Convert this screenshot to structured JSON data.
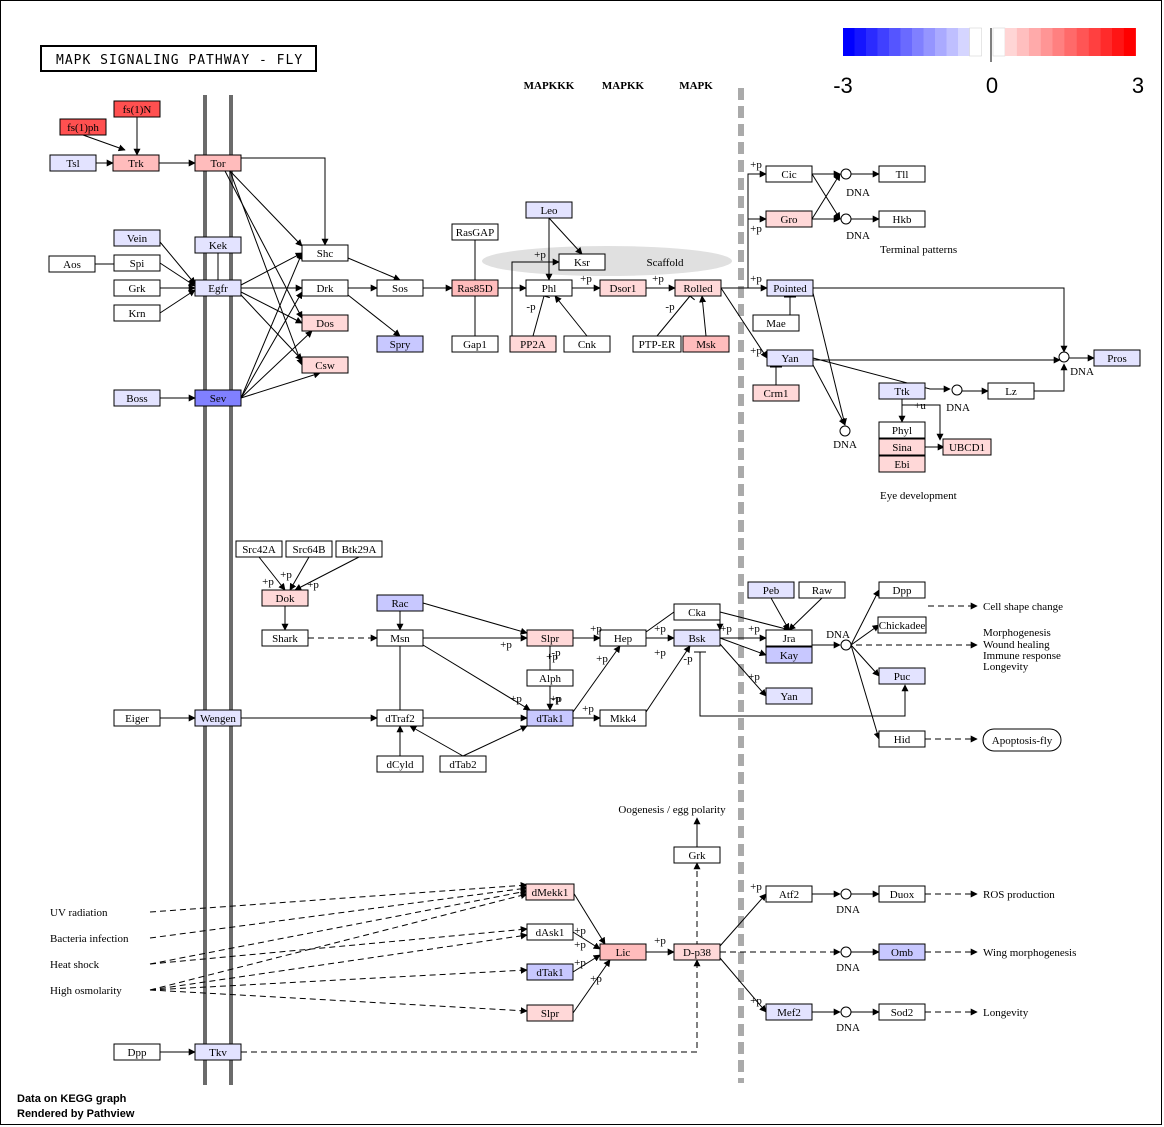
{
  "title": "MAPK SIGNALING PATHWAY - FLY",
  "headers": [
    "MAPKKK",
    "MAPKK",
    "MAPK"
  ],
  "legend": {
    "min_label": "-3",
    "mid_label": "0",
    "max_label": "3",
    "colors": [
      "#0000ff",
      "#1515ff",
      "#2b2bff",
      "#4040ff",
      "#5555ff",
      "#6a6aff",
      "#8080ff",
      "#9595ff",
      "#aaaaff",
      "#bfbfff",
      "#d5d5ff",
      "#ffffff",
      "#ffffff",
      "#ffd5d5",
      "#ffbfbf",
      "#ffaaaa",
      "#ff9595",
      "#ff8080",
      "#ff6a6a",
      "#ff5555",
      "#ff4040",
      "#ff2b2b",
      "#ff1515",
      "#ff0000"
    ]
  },
  "colors": {
    "up1": "#ffd8d8",
    "up2": "#ffbcbc",
    "up3": "#ff5050",
    "down1": "#e3e3ff",
    "down2": "#c8c8ff",
    "down3": "#8080ff",
    "none": "#ffffff",
    "membrane": "#6b6b6b",
    "scaffold": "#e0e0e0"
  },
  "genes": [
    {
      "id": "fs1N",
      "label": "fs(1)N",
      "color": "up3"
    },
    {
      "id": "fs1ph",
      "label": "fs(1)ph",
      "color": "up3"
    },
    {
      "id": "tsl",
      "label": "Tsl",
      "color": "down1"
    },
    {
      "id": "trk",
      "label": "Trk",
      "color": "up2"
    },
    {
      "id": "tor",
      "label": "Tor",
      "color": "up2"
    },
    {
      "id": "kek",
      "label": "Kek",
      "color": "down1"
    },
    {
      "id": "vein",
      "label": "Vein",
      "color": "down1"
    },
    {
      "id": "aos",
      "label": "Aos",
      "color": "none"
    },
    {
      "id": "spi",
      "label": "Spi",
      "color": "none"
    },
    {
      "id": "grk",
      "label": "Grk",
      "color": "none"
    },
    {
      "id": "krn",
      "label": "Krn",
      "color": "none"
    },
    {
      "id": "egfr",
      "label": "Egfr",
      "color": "down1"
    },
    {
      "id": "shc",
      "label": "Shc",
      "color": "none"
    },
    {
      "id": "drk",
      "label": "Drk",
      "color": "none"
    },
    {
      "id": "dos",
      "label": "Dos",
      "color": "up1"
    },
    {
      "id": "csw",
      "label": "Csw",
      "color": "up1"
    },
    {
      "id": "boss",
      "label": "Boss",
      "color": "down1"
    },
    {
      "id": "sev",
      "label": "Sev",
      "color": "down3"
    },
    {
      "id": "sos",
      "label": "Sos",
      "color": "none"
    },
    {
      "id": "spry",
      "label": "Spry",
      "color": "down2"
    },
    {
      "id": "rasgap",
      "label": "RasGAP",
      "color": "none"
    },
    {
      "id": "ras85d",
      "label": "Ras85D",
      "color": "up2"
    },
    {
      "id": "gap1",
      "label": "Gap1",
      "color": "none"
    },
    {
      "id": "leo",
      "label": "Leo",
      "color": "down1"
    },
    {
      "id": "ksr",
      "label": "Ksr",
      "color": "none"
    },
    {
      "id": "phl",
      "label": "Phl",
      "color": "none"
    },
    {
      "id": "pp2a",
      "label": "PP2A",
      "color": "up1"
    },
    {
      "id": "cnk",
      "label": "Cnk",
      "color": "none"
    },
    {
      "id": "dsor1",
      "label": "Dsor1",
      "color": "up1"
    },
    {
      "id": "rolled",
      "label": "Rolled",
      "color": "up1"
    },
    {
      "id": "ptper",
      "label": "PTP-ER",
      "color": "none"
    },
    {
      "id": "msk",
      "label": "Msk",
      "color": "up2"
    },
    {
      "id": "cic",
      "label": "Cic",
      "color": "none"
    },
    {
      "id": "gro",
      "label": "Gro",
      "color": "up1"
    },
    {
      "id": "tll",
      "label": "Tll",
      "color": "none"
    },
    {
      "id": "hkb",
      "label": "Hkb",
      "color": "none"
    },
    {
      "id": "pointed",
      "label": "Pointed",
      "color": "down1"
    },
    {
      "id": "mae",
      "label": "Mae",
      "color": "none"
    },
    {
      "id": "yan1",
      "label": "Yan",
      "color": "down1"
    },
    {
      "id": "crm1",
      "label": "Crm1",
      "color": "up1"
    },
    {
      "id": "pros",
      "label": "Pros",
      "color": "down1"
    },
    {
      "id": "ttk",
      "label": "Ttk",
      "color": "down1"
    },
    {
      "id": "lz",
      "label": "Lz",
      "color": "none"
    },
    {
      "id": "phyl",
      "label": "Phyl",
      "color": "none"
    },
    {
      "id": "sina",
      "label": "Sina",
      "color": "up1"
    },
    {
      "id": "ebi",
      "label": "Ebi",
      "color": "up1"
    },
    {
      "id": "ubcd1",
      "label": "UBCD1",
      "color": "up1"
    },
    {
      "id": "src42a",
      "label": "Src42A",
      "color": "none"
    },
    {
      "id": "src64b",
      "label": "Src64B",
      "color": "none"
    },
    {
      "id": "btk29a",
      "label": "Btk29A",
      "color": "none"
    },
    {
      "id": "dok",
      "label": "Dok",
      "color": "up1"
    },
    {
      "id": "shark",
      "label": "Shark",
      "color": "none"
    },
    {
      "id": "rac",
      "label": "Rac",
      "color": "down2"
    },
    {
      "id": "msn",
      "label": "Msn",
      "color": "none"
    },
    {
      "id": "slpr1",
      "label": "Slpr",
      "color": "up1"
    },
    {
      "id": "alph",
      "label": "Alph",
      "color": "none"
    },
    {
      "id": "hep",
      "label": "Hep",
      "color": "none"
    },
    {
      "id": "cka",
      "label": "Cka",
      "color": "none"
    },
    {
      "id": "bsk",
      "label": "Bsk",
      "color": "down1"
    },
    {
      "id": "peb",
      "label": "Peb",
      "color": "down1"
    },
    {
      "id": "raw",
      "label": "Raw",
      "color": "none"
    },
    {
      "id": "jra",
      "label": "Jra",
      "color": "none"
    },
    {
      "id": "kay",
      "label": "Kay",
      "color": "down2"
    },
    {
      "id": "yan2",
      "label": "Yan",
      "color": "down1"
    },
    {
      "id": "dpp1",
      "label": "Dpp",
      "color": "none"
    },
    {
      "id": "chickadee",
      "label": "Chickadee",
      "color": "none"
    },
    {
      "id": "puc",
      "label": "Puc",
      "color": "down1"
    },
    {
      "id": "hid",
      "label": "Hid",
      "color": "none"
    },
    {
      "id": "eiger",
      "label": "Eiger",
      "color": "none"
    },
    {
      "id": "wengen",
      "label": "Wengen",
      "color": "down1"
    },
    {
      "id": "dtraf2",
      "label": "dTraf2",
      "color": "none"
    },
    {
      "id": "dtak1a",
      "label": "dTak1",
      "color": "down2"
    },
    {
      "id": "mkk4",
      "label": "Mkk4",
      "color": "none"
    },
    {
      "id": "dcyld",
      "label": "dCyld",
      "color": "none"
    },
    {
      "id": "dtab2",
      "label": "dTab2",
      "color": "none"
    },
    {
      "id": "grk2",
      "label": "Grk",
      "color": "none"
    },
    {
      "id": "dmekk1",
      "label": "dMekk1",
      "color": "up1"
    },
    {
      "id": "dask1",
      "label": "dAsk1",
      "color": "none"
    },
    {
      "id": "dtak1b",
      "label": "dTak1",
      "color": "down2"
    },
    {
      "id": "slpr2",
      "label": "Slpr",
      "color": "up1"
    },
    {
      "id": "lic",
      "label": "Lic",
      "color": "up2"
    },
    {
      "id": "dp38",
      "label": "D-p38",
      "color": "up1"
    },
    {
      "id": "atf2",
      "label": "Atf2",
      "color": "none"
    },
    {
      "id": "duox",
      "label": "Duox",
      "color": "none"
    },
    {
      "id": "omb",
      "label": "Omb",
      "color": "down2"
    },
    {
      "id": "mef2",
      "label": "Mef2",
      "color": "down1"
    },
    {
      "id": "sod2",
      "label": "Sod2",
      "color": "none"
    },
    {
      "id": "dpp2",
      "label": "Dpp",
      "color": "none"
    },
    {
      "id": "tkv",
      "label": "Tkv",
      "color": "down1"
    }
  ],
  "labels": {
    "scaffold": "Scaffold",
    "terminal": "Terminal patterns",
    "eye": "Eye development",
    "cell_shape": "Cell shape change",
    "morpho": "Morphogenesis",
    "wound": "Wound healing",
    "immune": "Immune response",
    "longevity1": "Longevity",
    "apoptosis": "Apoptosis-fly",
    "oogenesis": "Oogenesis / egg polarity",
    "ros": "ROS production",
    "wing": "Wing morphogenesis",
    "longevity2": "Longevity",
    "uv": "UV radiation",
    "bacteria": "Bacteria infection",
    "heat": "Heat shock",
    "osmo": "High osmolarity",
    "dna": "DNA",
    "plus_p": "+p",
    "minus_p": "-p",
    "plus_u": "+u"
  },
  "footer": {
    "line1": "Data on KEGG graph",
    "line2": "Rendered by Pathview"
  }
}
